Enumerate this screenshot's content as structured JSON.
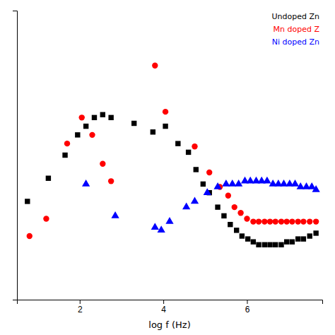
{
  "chart_data": {
    "type": "scatter",
    "x_label": "log f (Hz)",
    "xlim": [
      0.5,
      7.8
    ],
    "xticks": [
      2,
      4,
      6
    ],
    "ylim": [
      0.0,
      1.0
    ],
    "yticks": [],
    "tick_labels": "x",
    "legend": "upper right",
    "series": [
      {
        "name": "Undoped Zn",
        "color": "black",
        "marker": "square",
        "x": [
          0.75,
          1.25,
          1.65,
          1.95,
          2.15,
          2.35,
          2.55,
          2.75,
          3.3,
          3.75,
          4.05,
          4.35,
          4.6,
          4.78,
          4.95,
          5.1,
          5.3,
          5.45,
          5.6,
          5.75,
          5.88,
          6.02,
          6.15,
          6.28,
          6.42,
          6.55,
          6.68,
          6.82,
          6.95,
          7.08,
          7.22,
          7.35,
          7.5,
          7.65
        ],
        "values": [
          0.34,
          0.42,
          0.5,
          0.57,
          0.6,
          0.63,
          0.64,
          0.63,
          0.61,
          0.58,
          0.6,
          0.54,
          0.51,
          0.45,
          0.4,
          0.37,
          0.32,
          0.29,
          0.26,
          0.24,
          0.22,
          0.21,
          0.2,
          0.19,
          0.19,
          0.19,
          0.19,
          0.19,
          0.2,
          0.2,
          0.21,
          0.21,
          0.22,
          0.23
        ]
      },
      {
        "name": "Mn doped Z",
        "color": "red",
        "marker": "circle",
        "x": [
          0.8,
          1.2,
          1.7,
          2.05,
          2.3,
          2.55,
          2.75,
          3.8,
          4.05,
          4.75,
          5.1,
          5.35,
          5.55,
          5.7,
          5.85,
          6.0,
          6.15,
          6.28,
          6.42,
          6.55,
          6.68,
          6.82,
          6.95,
          7.08,
          7.22,
          7.35,
          7.5,
          7.65
        ],
        "values": [
          0.22,
          0.28,
          0.54,
          0.63,
          0.57,
          0.47,
          0.41,
          0.81,
          0.65,
          0.53,
          0.44,
          0.39,
          0.36,
          0.32,
          0.3,
          0.28,
          0.27,
          0.27,
          0.27,
          0.27,
          0.27,
          0.27,
          0.27,
          0.27,
          0.27,
          0.27,
          0.27,
          0.27
        ]
      },
      {
        "name": "Ni doped Zn",
        "color": "blue",
        "marker": "triangle",
        "x": [
          2.15,
          2.85,
          3.8,
          3.95,
          4.15,
          4.55,
          4.75,
          5.05,
          5.3,
          5.5,
          5.65,
          5.8,
          5.95,
          6.08,
          6.22,
          6.35,
          6.48,
          6.62,
          6.75,
          6.88,
          7.02,
          7.15,
          7.28,
          7.42,
          7.55,
          7.65
        ],
        "values": [
          0.4,
          0.29,
          0.25,
          0.24,
          0.27,
          0.32,
          0.34,
          0.37,
          0.39,
          0.4,
          0.4,
          0.4,
          0.41,
          0.41,
          0.41,
          0.41,
          0.41,
          0.4,
          0.4,
          0.4,
          0.4,
          0.4,
          0.39,
          0.39,
          0.39,
          0.38
        ]
      }
    ]
  }
}
